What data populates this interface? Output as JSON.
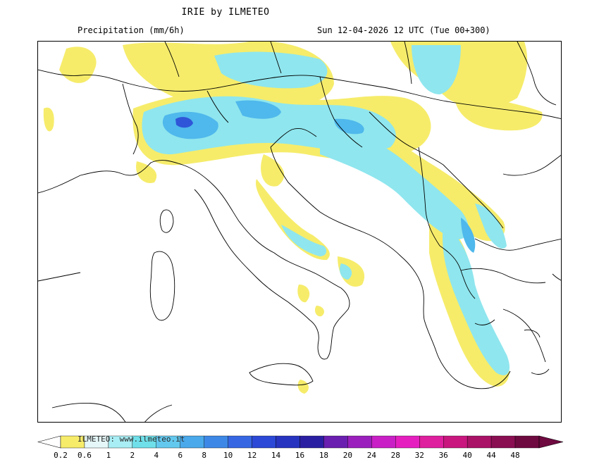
{
  "header": {
    "title": "IRIE by ILMETEO",
    "variable": "Precipitation (mm/6h)",
    "valid_time": "Sun 12-04-2026 12 UTC (Tue 00+300)"
  },
  "legend": {
    "watermark": "ILMETEO: www.ilmeteo.it",
    "ticks": [
      "0.2",
      "0.6",
      "1",
      "2",
      "4",
      "6",
      "8",
      "10",
      "12",
      "14",
      "16",
      "18",
      "20",
      "24",
      "28",
      "32",
      "36",
      "40",
      "44",
      "48"
    ],
    "colors": [
      "#ffffff",
      "#f6ec6a",
      "#e5f7f9",
      "#a9eef4",
      "#6fe0ea",
      "#63c8ee",
      "#4aa9ea",
      "#3d88e6",
      "#3666e2",
      "#2b48d6",
      "#2734c0",
      "#2a1fa3",
      "#6a1fb0",
      "#9a1fbd",
      "#c91fc6",
      "#e51fbf",
      "#de1f9e",
      "#c8167e",
      "#a91266",
      "#8a0e52",
      "#6e0a40"
    ]
  }
}
